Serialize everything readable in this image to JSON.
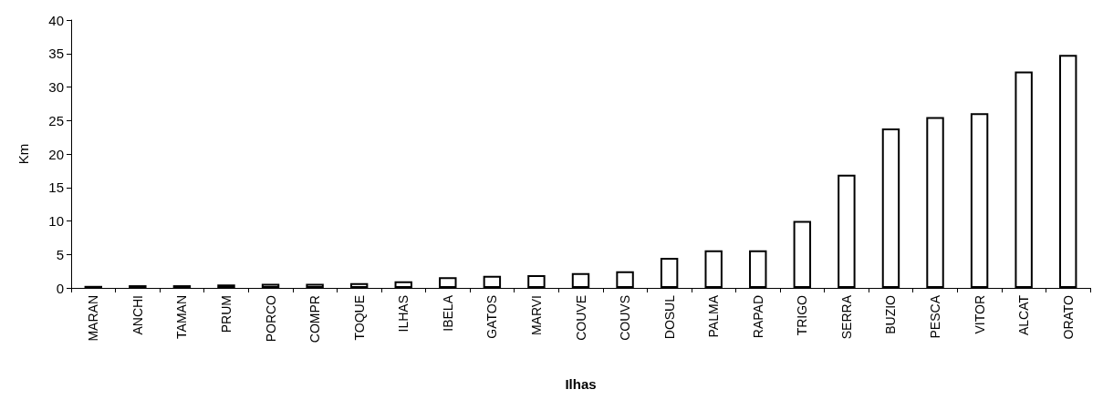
{
  "chart_data": {
    "type": "bar",
    "xlabel": "Ilhas",
    "ylabel": "Km",
    "categories": [
      "MARAN",
      "ANCHI",
      "TAMAN",
      "PRUM",
      "PORCO",
      "COMPR",
      "TOQUE",
      "ILHAS",
      "IBELA",
      "GATOS",
      "MARVI",
      "COUVE",
      "COUVS",
      "DOSUL",
      "PALMA",
      "RAPAD",
      "TRIGO",
      "SERRA",
      "BUZIO",
      "PESCA",
      "VITOR",
      "ALCAT",
      "ORATO"
    ],
    "values": [
      0.3,
      0.4,
      0.4,
      0.5,
      0.6,
      0.6,
      0.7,
      1.0,
      1.6,
      1.8,
      1.9,
      2.2,
      2.5,
      4.5,
      5.6,
      5.6,
      10.0,
      16.9,
      23.8,
      25.5,
      26.1,
      32.3,
      34.8
    ],
    "color": "#ffffff",
    "ylim": [
      0,
      40
    ],
    "yticks": [
      0,
      5,
      10,
      15,
      20,
      25,
      30,
      35,
      40
    ],
    "grid": false
  }
}
